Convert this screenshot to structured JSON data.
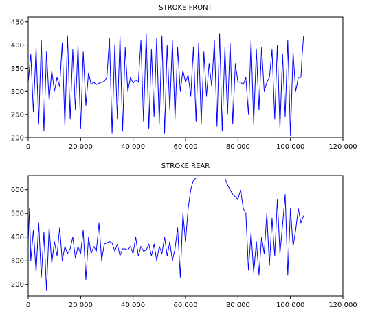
{
  "colors": {
    "line": "#0000ff",
    "axis": "#000000",
    "background": "#ffffff"
  },
  "chart_data": [
    {
      "type": "line",
      "title": "STROKE FRONT",
      "xlabel": "",
      "ylabel": "",
      "xlim": [
        0,
        120000
      ],
      "ylim": [
        200,
        460
      ],
      "x_ticks": [
        0,
        20000,
        40000,
        60000,
        80000,
        100000,
        120000
      ],
      "x_tick_labels": [
        "0",
        "20 000",
        "40 000",
        "60 000",
        "80 000",
        "100 000",
        "120 000"
      ],
      "y_ticks": [
        200,
        250,
        300,
        350,
        400,
        450
      ],
      "y_tick_labels": [
        "200",
        "250",
        "300",
        "350",
        "400",
        "450"
      ],
      "grid": false,
      "series": [
        {
          "x": [
            0,
            1000,
            2000,
            3000,
            4000,
            5000,
            6000,
            7000,
            8000,
            9000,
            10000,
            11000,
            12000,
            13000,
            14000,
            15000,
            16000,
            17000,
            18000,
            19000,
            20000,
            21000,
            22000,
            23000,
            24000,
            25000,
            26000,
            27000,
            28000,
            29000,
            30000,
            31000,
            32000,
            33000,
            34000,
            35000,
            36000,
            37000,
            38000,
            39000,
            40000,
            41000,
            42000,
            43000,
            44000,
            45000,
            46000,
            47000,
            48000,
            49000,
            50000,
            51000,
            52000,
            53000,
            54000,
            55000,
            56000,
            57000,
            58000,
            59000,
            60000,
            61000,
            62000,
            63000,
            64000,
            65000,
            66000,
            67000,
            68000,
            69000,
            70000,
            71000,
            72000,
            73000,
            74000,
            75000,
            76000,
            77000,
            78000,
            79000,
            80000,
            81000,
            82000,
            83000,
            84000,
            85000,
            86000,
            87000,
            88000,
            89000,
            90000,
            91000,
            92000,
            93000,
            94000,
            95000,
            96000,
            97000,
            98000,
            99000,
            100000,
            101000,
            102000,
            103000,
            104000,
            104500,
            105000
          ],
          "y": [
            320,
            380,
            255,
            395,
            230,
            410,
            215,
            385,
            280,
            345,
            300,
            330,
            310,
            405,
            225,
            420,
            240,
            390,
            260,
            400,
            220,
            385,
            270,
            340,
            315,
            320,
            315,
            318,
            320,
            322,
            330,
            415,
            210,
            400,
            240,
            420,
            215,
            395,
            300,
            330,
            318,
            325,
            320,
            410,
            235,
            425,
            220,
            390,
            245,
            415,
            230,
            420,
            210,
            400,
            260,
            410,
            240,
            395,
            300,
            345,
            320,
            335,
            290,
            395,
            235,
            405,
            230,
            385,
            290,
            360,
            310,
            410,
            225,
            425,
            215,
            395,
            250,
            405,
            230,
            360,
            320,
            320,
            315,
            330,
            250,
            410,
            230,
            390,
            260,
            395,
            300,
            320,
            330,
            390,
            240,
            400,
            220,
            380,
            245,
            410,
            205,
            385,
            300,
            330,
            330,
            380,
            420
          ]
        }
      ]
    },
    {
      "type": "line",
      "title": "STROKE REAR",
      "xlabel": "",
      "ylabel": "",
      "xlim": [
        0,
        120000
      ],
      "ylim": [
        150,
        660
      ],
      "x_ticks": [
        0,
        20000,
        40000,
        60000,
        80000,
        100000,
        120000
      ],
      "x_tick_labels": [
        "0",
        "20 000",
        "40 000",
        "60 000",
        "80 000",
        "100 000",
        "120 000"
      ],
      "y_ticks": [
        200,
        300,
        400,
        500,
        600
      ],
      "y_tick_labels": [
        "200",
        "300",
        "400",
        "500",
        "600"
      ],
      "grid": false,
      "series": [
        {
          "x": [
            0,
            500,
            1000,
            2000,
            3000,
            4000,
            5000,
            6000,
            7000,
            8000,
            9000,
            10000,
            11000,
            12000,
            13000,
            14000,
            15000,
            16000,
            17000,
            18000,
            19000,
            20000,
            21000,
            22000,
            23000,
            24000,
            25000,
            26000,
            27000,
            28000,
            29000,
            30000,
            31000,
            32000,
            33000,
            34000,
            35000,
            36000,
            37000,
            38000,
            39000,
            40000,
            41000,
            42000,
            43000,
            44000,
            45000,
            46000,
            47000,
            48000,
            49000,
            50000,
            51000,
            52000,
            53000,
            54000,
            55000,
            56000,
            57000,
            58000,
            59000,
            60000,
            61000,
            62000,
            63000,
            64000,
            65000,
            66000,
            68000,
            70000,
            72000,
            74000,
            75000,
            76000,
            77000,
            78000,
            79000,
            80000,
            81000,
            82000,
            83000,
            84000,
            85000,
            86000,
            87000,
            88000,
            89000,
            90000,
            91000,
            92000,
            93000,
            94000,
            95000,
            96000,
            97000,
            98000,
            99000,
            100000,
            101000,
            102000,
            103000,
            104000,
            105000
          ],
          "y": [
            380,
            520,
            300,
            430,
            250,
            460,
            230,
            420,
            175,
            440,
            290,
            380,
            320,
            440,
            300,
            360,
            330,
            350,
            400,
            310,
            360,
            330,
            430,
            220,
            400,
            330,
            360,
            340,
            460,
            300,
            370,
            375,
            380,
            375,
            340,
            370,
            320,
            350,
            350,
            345,
            360,
            330,
            400,
            320,
            360,
            340,
            345,
            370,
            320,
            370,
            300,
            360,
            330,
            400,
            320,
            380,
            300,
            350,
            440,
            230,
            500,
            380,
            520,
            600,
            640,
            650,
            650,
            650,
            650,
            650,
            650,
            650,
            650,
            620,
            600,
            580,
            570,
            560,
            600,
            520,
            500,
            260,
            420,
            250,
            380,
            240,
            400,
            330,
            500,
            280,
            480,
            320,
            560,
            330,
            450,
            580,
            240,
            520,
            360,
            430,
            520,
            460,
            490
          ]
        }
      ]
    }
  ]
}
